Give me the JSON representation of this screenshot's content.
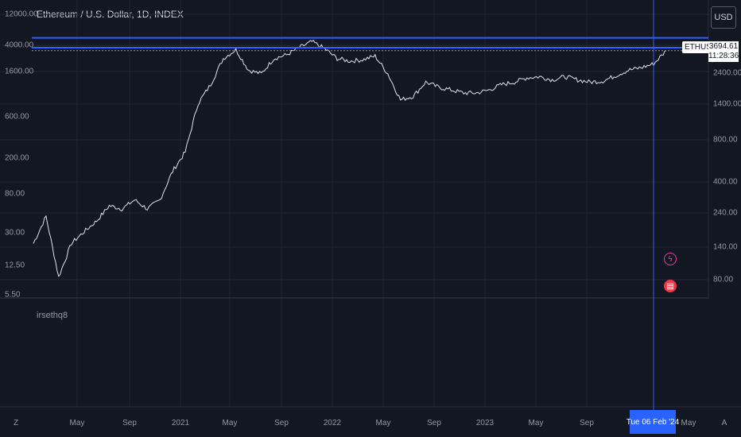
{
  "header": {
    "title": "Ethereum / U.S. Dollar, 1D, INDEX",
    "currency_button": "USD"
  },
  "left_axis": {
    "ticks": [
      "12000.00",
      "4000.00",
      "1600.00",
      "600.00",
      "200.00",
      "80.00",
      "30.00",
      "12.50",
      "5.50"
    ]
  },
  "right_axis": {
    "ticks": [
      "2400.00",
      "1400.00",
      "800.00",
      "400.00",
      "240.00",
      "140.00",
      "80.00"
    ]
  },
  "price_label": {
    "symbol": "ETHUSD",
    "price": "3694.61",
    "countdown": "11:28:36"
  },
  "time_axis": {
    "left_edge": "Z",
    "right_edge": "A",
    "labels": [
      "May",
      "Sep",
      "2021",
      "May",
      "Sep",
      "2022",
      "May",
      "Sep",
      "2023",
      "May",
      "Sep",
      "May"
    ],
    "crosshair_date": "Tue 06 Feb '24"
  },
  "lower_pane": {
    "label": "irsethq8"
  },
  "colors": {
    "background": "#131722",
    "grid": "#1f2431",
    "price_line": "#e0e3eb",
    "accent": "#2962ff"
  },
  "icons": [
    "lightning-event-icon",
    "us-flag-event-icon"
  ],
  "chart_data": {
    "type": "line",
    "scale": "log",
    "x": [
      "2020-01",
      "2020-02",
      "2020-03",
      "2020-04",
      "2020-05",
      "2020-06",
      "2020-07",
      "2020-08",
      "2020-09",
      "2020-10",
      "2020-11",
      "2020-12",
      "2021-01",
      "2021-02",
      "2021-03",
      "2021-04",
      "2021-05",
      "2021-06",
      "2021-07",
      "2021-08",
      "2021-09",
      "2021-10",
      "2021-11",
      "2021-12",
      "2022-01",
      "2022-02",
      "2022-03",
      "2022-04",
      "2022-05",
      "2022-06",
      "2022-07",
      "2022-08",
      "2022-09",
      "2022-10",
      "2022-11",
      "2022-12",
      "2023-01",
      "2023-02",
      "2023-03",
      "2023-04",
      "2023-05",
      "2023-06",
      "2023-07",
      "2023-08",
      "2023-09",
      "2023-10",
      "2023-11",
      "2023-12",
      "2024-01",
      "2024-02",
      "2024-03"
    ],
    "series": [
      {
        "values": [
          22,
          45,
          9,
          22,
          30,
          40,
          60,
          55,
          70,
          55,
          70,
          150,
          250,
          900,
          1500,
          3000,
          3800,
          2200,
          2000,
          3000,
          3300,
          4000,
          4700,
          3900,
          3000,
          2800,
          2900,
          3200,
          2000,
          1000,
          1100,
          1600,
          1400,
          1300,
          1200,
          1200,
          1300,
          1500,
          1600,
          1800,
          1850,
          1700,
          1850,
          1700,
          1600,
          1650,
          1900,
          2200,
          2350,
          2600,
          3700
        ]
      }
    ],
    "horizontal_lines": [
      5200,
      4000,
      3694.61
    ],
    "ylim": [
      5.5,
      12000
    ]
  }
}
